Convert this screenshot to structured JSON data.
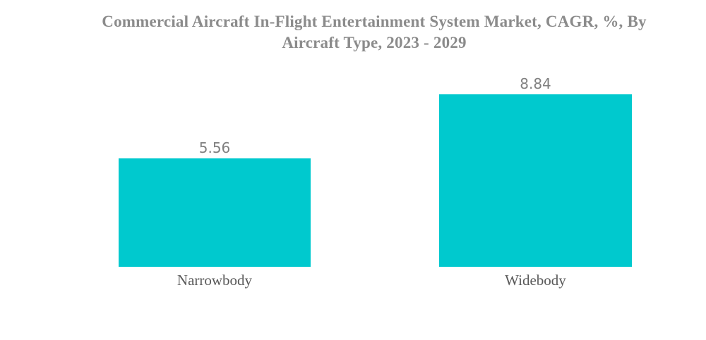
{
  "chart_data": {
    "type": "bar",
    "title": "Commercial Aircraft In-Flight Entertainment System Market, CAGR, %, By Aircraft Type, 2023 - 2029",
    "title_lines": [
      "Commercial Aircraft In-Flight Entertainment System Market, CAGR, %, By",
      "Aircraft Type, 2023 - 2029"
    ],
    "categories": [
      "Narrowbody",
      "Widebody"
    ],
    "values": [
      5.56,
      8.84
    ],
    "value_labels": [
      "5.56",
      "8.84"
    ],
    "unit": "%",
    "xlabel": "",
    "ylabel": "CAGR, %",
    "ylim": [
      0,
      8.84
    ],
    "grid": false,
    "legend_position": "none",
    "axes_visible": false,
    "bar_color": "#00C9CE",
    "colors": {
      "bar": "#00C9CE",
      "title_text": "#8B8B8B",
      "value_text": "#7F7F7F",
      "category_text": "#595959",
      "background": "#FFFFFF"
    }
  }
}
